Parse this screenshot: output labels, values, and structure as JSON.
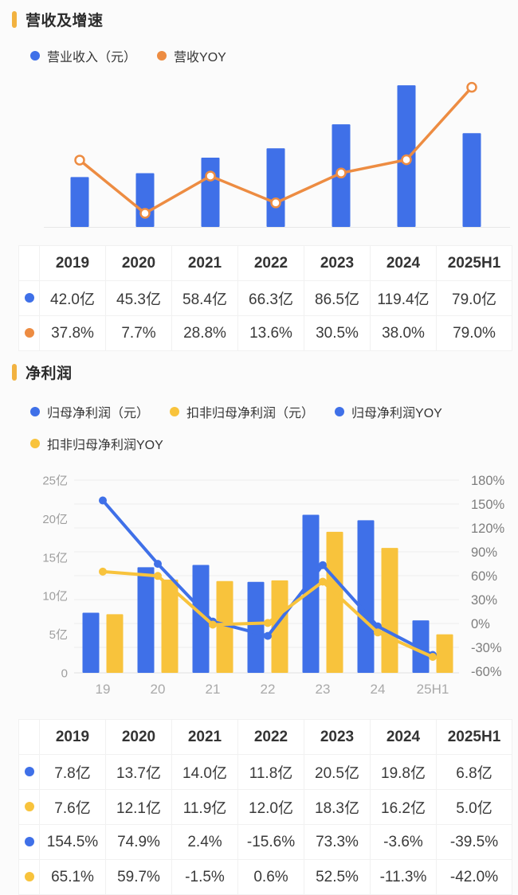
{
  "colors": {
    "accent": "#F2B240",
    "blue": "#3F70E8",
    "orange": "#ED8C42",
    "yellow": "#F8C33C",
    "grid": "#EDEDED",
    "axis_line": "#E7E7E7"
  },
  "sections": [
    {
      "title": "营收及增速",
      "legend": [
        {
          "label": "营业收入（元）",
          "color": "#3F70E8",
          "dot_name": "revenue-legend-dot"
        },
        {
          "label": "营收YOY",
          "color": "#ED8C42",
          "dot_name": "revenue-yoy-legend-dot"
        }
      ],
      "table": {
        "headers": [
          "2019",
          "2020",
          "2021",
          "2022",
          "2023",
          "2024",
          "2025H1"
        ],
        "rows": [
          {
            "dot_color": "#3F70E8",
            "dot_name": "revenue-row-dot",
            "values": [
              "42.0亿",
              "45.3亿",
              "58.4亿",
              "66.3亿",
              "86.5亿",
              "119.4亿",
              "79.0亿"
            ]
          },
          {
            "dot_color": "#ED8C42",
            "dot_name": "revenue-yoy-row-dot",
            "values": [
              "37.8%",
              "7.7%",
              "28.8%",
              "13.6%",
              "30.5%",
              "38.0%",
              "79.0%"
            ]
          }
        ]
      }
    },
    {
      "title": "净利润",
      "legend": [
        {
          "label": "归母净利润（元）",
          "color": "#3F70E8",
          "dot_name": "net-profit-legend-dot"
        },
        {
          "label": "扣非归母净利润（元）",
          "color": "#F8C33C",
          "dot_name": "deducted-net-profit-legend-dot"
        },
        {
          "label": "归母净利润YOY",
          "color": "#3F70E8",
          "dot_name": "net-profit-yoy-legend-dot"
        },
        {
          "label": "扣非归母净利润YOY",
          "color": "#F8C33C",
          "dot_name": "deducted-net-profit-yoy-legend-dot"
        }
      ],
      "table": {
        "headers": [
          "2019",
          "2020",
          "2021",
          "2022",
          "2023",
          "2024",
          "2025H1"
        ],
        "rows": [
          {
            "dot_color": "#3F70E8",
            "dot_name": "net-profit-row-dot",
            "values": [
              "7.8亿",
              "13.7亿",
              "14.0亿",
              "11.8亿",
              "20.5亿",
              "19.8亿",
              "6.8亿"
            ]
          },
          {
            "dot_color": "#F8C33C",
            "dot_name": "deducted-net-profit-row-dot",
            "values": [
              "7.6亿",
              "12.1亿",
              "11.9亿",
              "12.0亿",
              "18.3亿",
              "16.2亿",
              "5.0亿"
            ]
          },
          {
            "dot_color": "#3F70E8",
            "dot_name": "net-profit-yoy-row-dot",
            "values": [
              "154.5%",
              "74.9%",
              "2.4%",
              "-15.6%",
              "73.3%",
              "-3.6%",
              "-39.5%"
            ]
          },
          {
            "dot_color": "#F8C33C",
            "dot_name": "deducted-net-profit-yoy-row-dot",
            "values": [
              "65.1%",
              "59.7%",
              "-1.5%",
              "0.6%",
              "52.5%",
              "-11.3%",
              "-42.0%"
            ]
          }
        ]
      }
    }
  ],
  "chart_data": [
    {
      "type": "bar+line",
      "title": "营收及增速",
      "categories": [
        "2019",
        "2020",
        "2021",
        "2022",
        "2023",
        "2024",
        "2025H1"
      ],
      "series": [
        {
          "name": "营业收入（元）",
          "type": "bar",
          "unit": "亿",
          "color": "#3F70E8",
          "values": [
            42.0,
            45.3,
            58.4,
            66.3,
            86.5,
            119.4,
            79.0
          ]
        },
        {
          "name": "营收YOY",
          "type": "line",
          "unit": "%",
          "color": "#ED8C42",
          "marker": "hollow",
          "values": [
            37.8,
            7.7,
            28.8,
            13.6,
            30.5,
            38.0,
            79.0
          ]
        }
      ],
      "axes_visible": false,
      "grid": false,
      "legend_position": "top"
    },
    {
      "type": "bar+line",
      "title": "净利润",
      "categories": [
        "19",
        "20",
        "21",
        "22",
        "23",
        "24",
        "25H1"
      ],
      "series": [
        {
          "name": "归母净利润（元）",
          "type": "bar",
          "axis": "left",
          "unit": "亿",
          "color": "#3F70E8",
          "values": [
            7.8,
            13.7,
            14.0,
            11.8,
            20.5,
            19.8,
            6.8
          ]
        },
        {
          "name": "扣非归母净利润（元）",
          "type": "bar",
          "axis": "left",
          "unit": "亿",
          "color": "#F8C33C",
          "values": [
            7.6,
            12.1,
            11.9,
            12.0,
            18.3,
            16.2,
            5.0
          ]
        },
        {
          "name": "归母净利润YOY",
          "type": "line",
          "axis": "right",
          "unit": "%",
          "color": "#3F70E8",
          "marker": "solid",
          "values": [
            154.5,
            74.9,
            2.4,
            -15.6,
            73.3,
            -3.6,
            -39.5
          ]
        },
        {
          "name": "扣非归母净利润YOY",
          "type": "line",
          "axis": "right",
          "unit": "%",
          "color": "#F8C33C",
          "marker": "solid",
          "values": [
            65.1,
            59.7,
            -1.5,
            0.6,
            52.5,
            -11.3,
            -42.0
          ]
        }
      ],
      "left_axis": {
        "min": 0,
        "max": 25,
        "ticks": [
          "25亿",
          "20亿",
          "15亿",
          "10亿",
          "5亿",
          "0"
        ]
      },
      "right_axis": {
        "min": -60,
        "max": 180,
        "ticks": [
          "180%",
          "150%",
          "120%",
          "90%",
          "60%",
          "30%",
          "0%",
          "-30%",
          "-60%"
        ]
      },
      "grid": true,
      "legend_position": "top"
    }
  ]
}
